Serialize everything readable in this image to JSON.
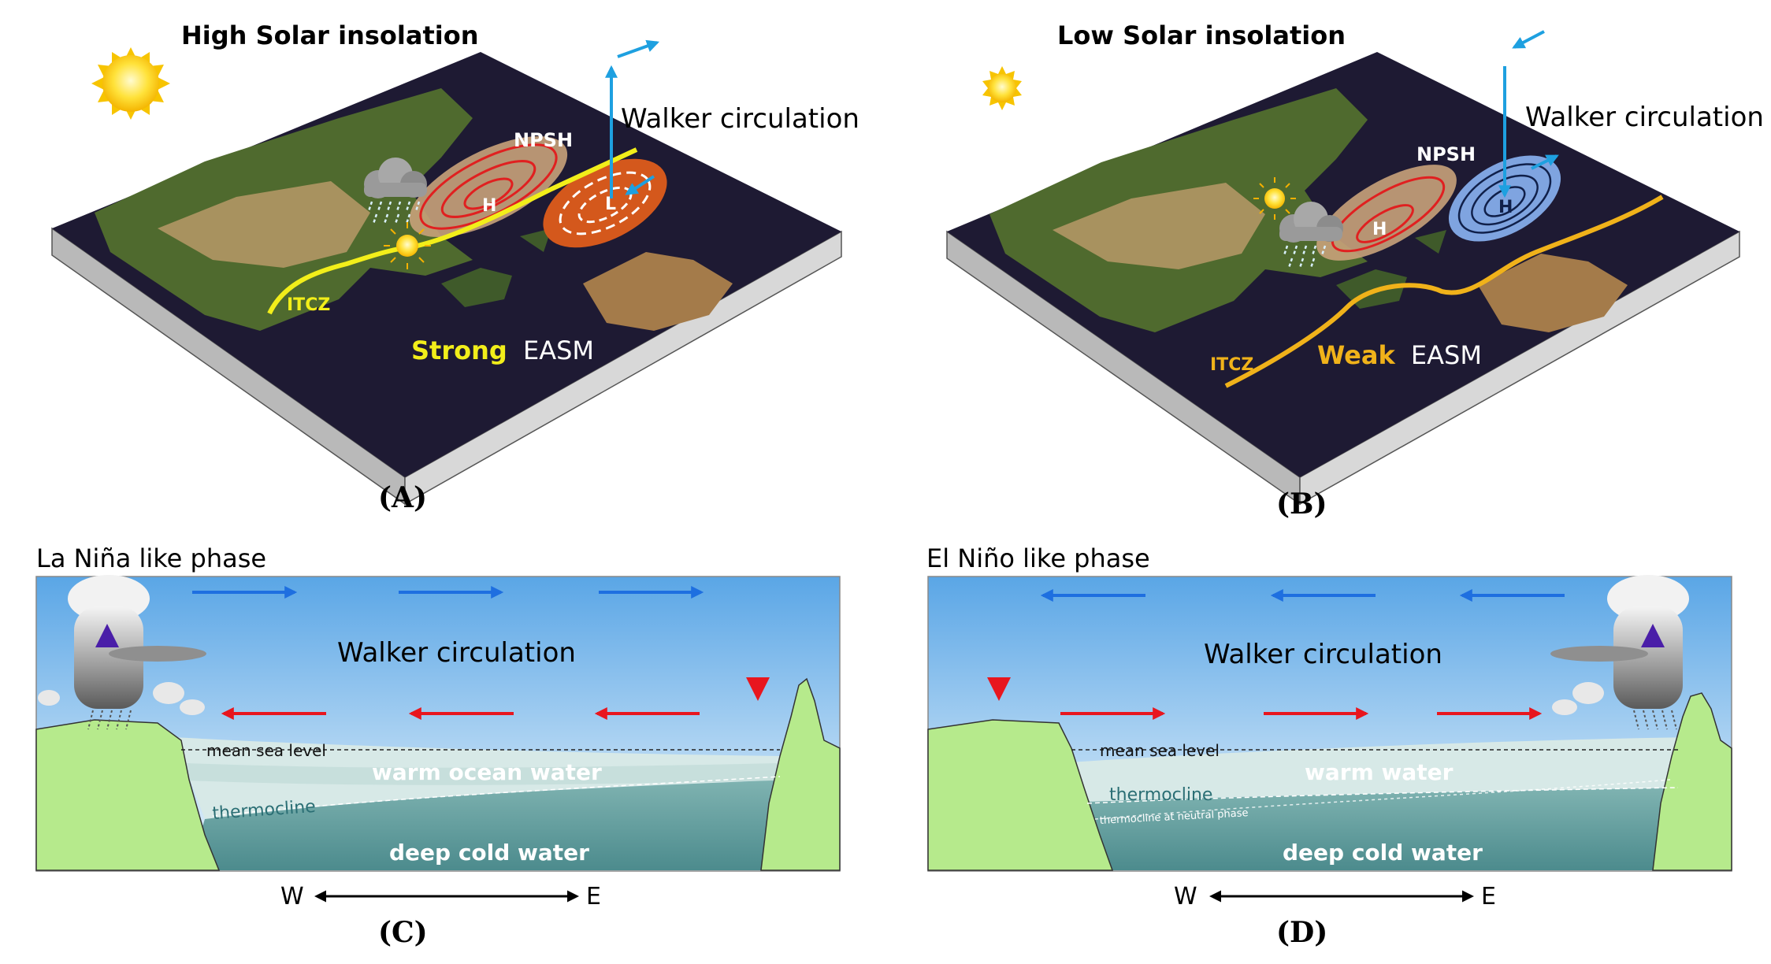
{
  "panel_a": {
    "title": "High Solar insolation",
    "walker": "Walker circulation",
    "npsh": "NPSH",
    "high": "H",
    "low": "L",
    "itcz": "ITCZ",
    "easm_strength": "Strong",
    "easm": "EASM",
    "caption": "(A)"
  },
  "panel_b": {
    "title": "Low Solar insolation",
    "walker": "Walker circulation",
    "npsh": "NPSH",
    "high_west": "H",
    "high_east": "H",
    "itcz": "ITCZ",
    "easm_strength": "Weak",
    "easm": "EASM",
    "caption": "(B)"
  },
  "panel_c": {
    "phase": "La Niña like phase",
    "walker": "Walker circulation",
    "mean_sea_level": "mean sea level",
    "warm": "warm ocean water",
    "thermocline": "thermocline",
    "deep": "deep cold water",
    "west": "W",
    "east": "E",
    "caption": "(C)"
  },
  "panel_d": {
    "phase": "El Niño like phase",
    "walker": "Walker circulation",
    "mean_sea_level": "mean sea level",
    "warm": "warm water",
    "thermocline": "thermocline",
    "thermocline_neutral": "thermocline at neutral phase",
    "deep": "deep cold water",
    "west": "W",
    "east": "E",
    "caption": "(D)"
  },
  "colors": {
    "map_ocean": "#1e1a33",
    "land_green": "#4f6a2e",
    "land_desert": "#a8925f",
    "itcz_a": "#f2ee1a",
    "itcz_b": "#f0b21a",
    "npsh_fill": "#c8a27a",
    "low_fill": "#d4581c",
    "high_blue_fill": "#7fa4e0",
    "walker_arrow": "#1ea0e0",
    "sky_top": "#5aa6e6",
    "sky_bottom": "#e8f3fb",
    "ocean_warm": "#cfe3e2",
    "ocean_deep": "#4f8e90",
    "coast_green": "#b6ea8c",
    "arrow_blue": "#1e6fe0",
    "arrow_red": "#e8161e"
  }
}
